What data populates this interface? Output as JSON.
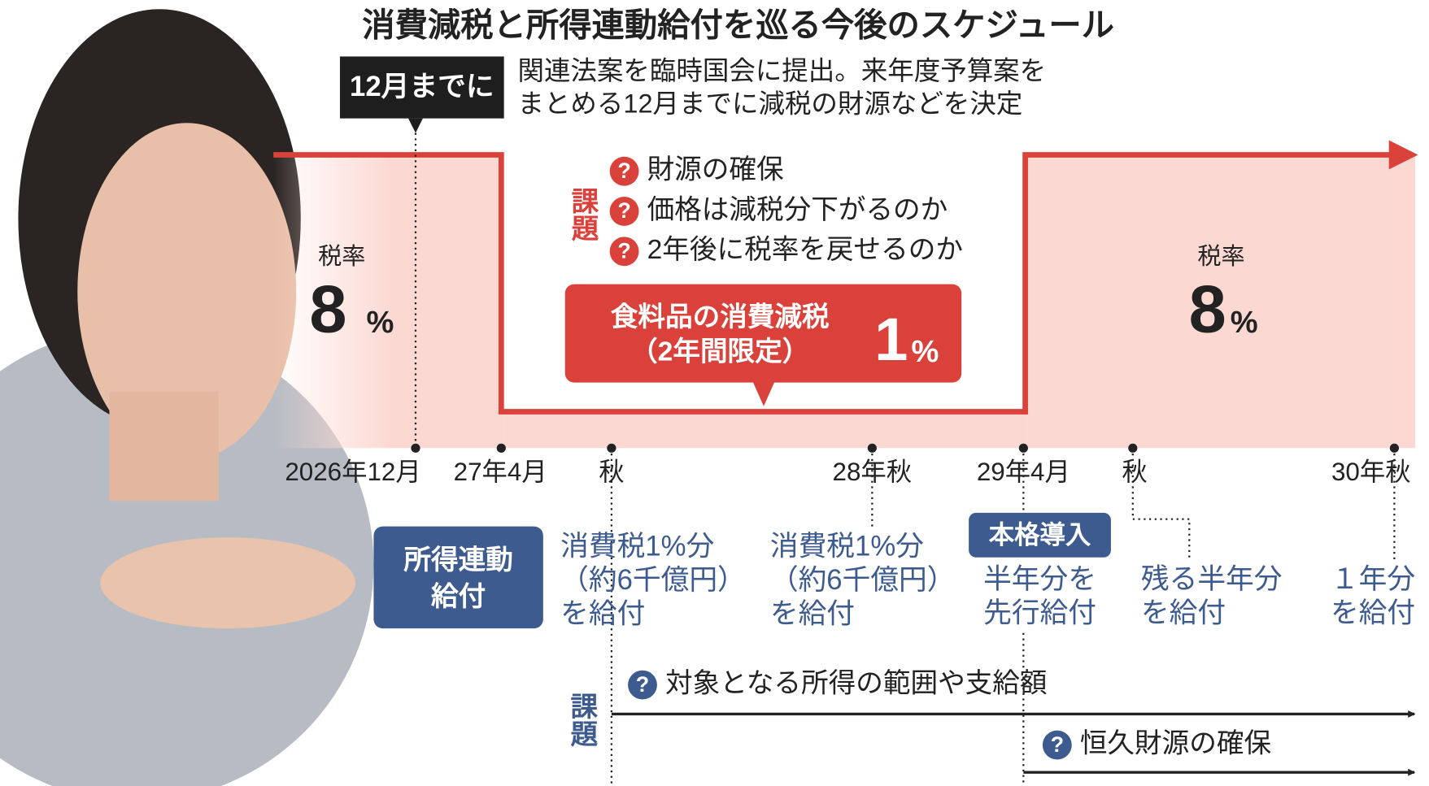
{
  "title": "消費減税と所得連動給付を巡る今後のスケジュール",
  "question_mark": "?",
  "deadline": {
    "tag": "12月までに",
    "lines": [
      "関連法案を臨時国会に提出。来年度予算案を",
      "まとめる12月までに減税の財源などを決定"
    ]
  },
  "tax_before": {
    "label": "税率",
    "value": "8",
    "unit": "%"
  },
  "tax_after": {
    "label": "税率",
    "value": "8",
    "unit": "%"
  },
  "reduction": {
    "lines": [
      "食料品の消費減税",
      "（2年間限定）"
    ],
    "value": "1",
    "unit": "%"
  },
  "issues_top": {
    "heading": "課題",
    "items": [
      "財源の確保",
      "価格は減税分下がるのか",
      "2年後に税率を戻せるのか"
    ]
  },
  "timeline": [
    "2026年12月",
    "27年4月",
    "秋",
    "28年秋",
    "29年4月",
    "秋",
    "30年秋"
  ],
  "benefit": {
    "label": [
      "所得連動",
      "給付"
    ],
    "items": [
      {
        "lines": [
          "消費税1%分",
          "（約6千億円）",
          "を給付"
        ]
      },
      {
        "lines": [
          "消費税1%分",
          "（約6千億円）",
          "を給付"
        ]
      },
      {
        "tag": "本格導入",
        "lines": [
          "半年分を",
          "先行給付"
        ]
      },
      {
        "lines": [
          "残る半年分",
          "を給付"
        ]
      },
      {
        "lines": [
          "１年分",
          "を給付"
        ]
      }
    ]
  },
  "issues_bottom": {
    "heading": "課題",
    "items": [
      "対象となる所得の範囲や支給額",
      "恒久財源の確保"
    ]
  }
}
